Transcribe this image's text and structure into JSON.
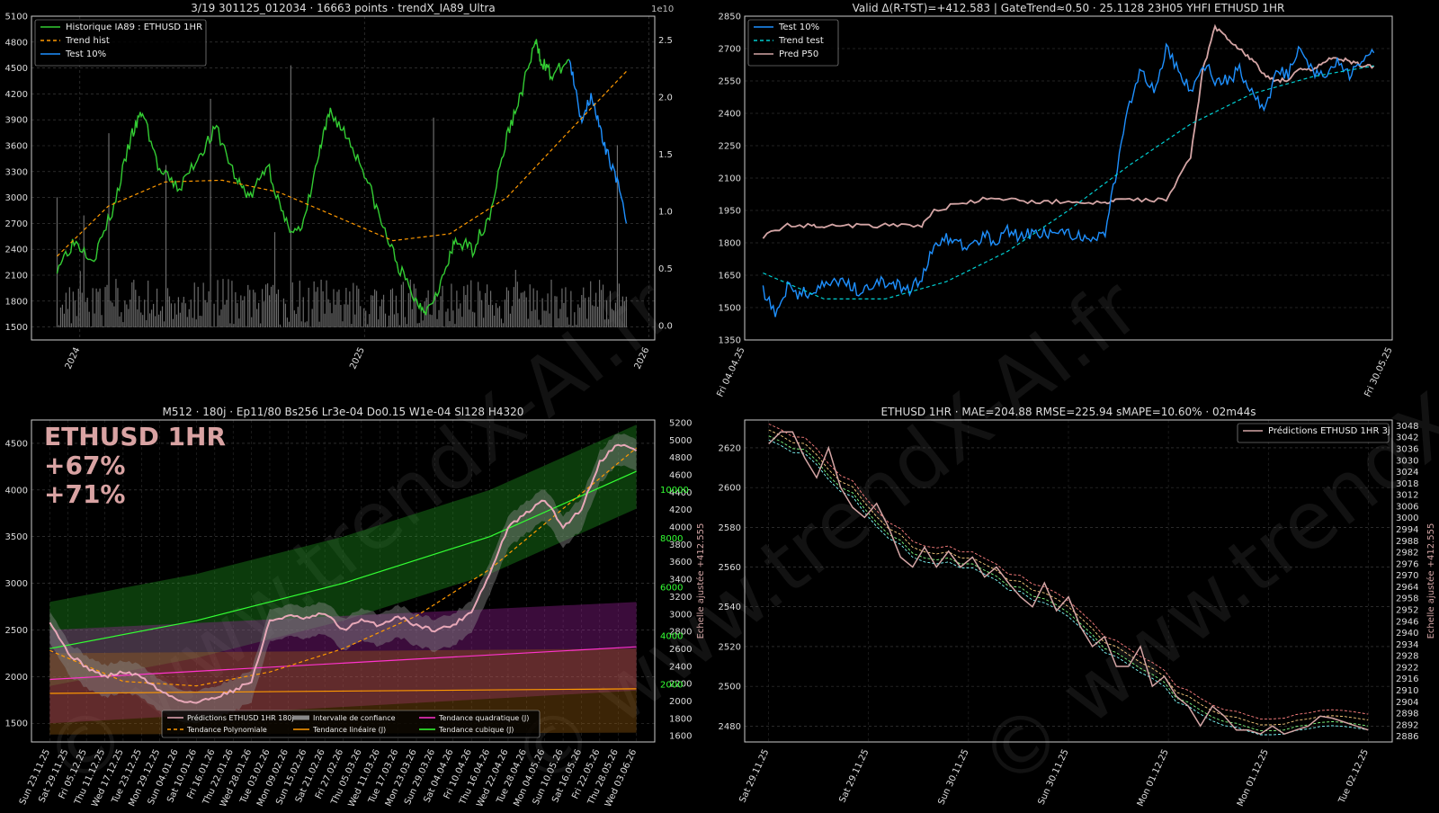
{
  "watermark": "© www.trendX-AI.fr",
  "chart_data": [
    {
      "type": "line",
      "title": "3/19 301125_012034 · 16663 points · trendX_IA89_Ultra",
      "ylim": [
        1350,
        5100
      ],
      "y_ticks": [
        "1500",
        "1800",
        "2100",
        "2400",
        "2700",
        "3000",
        "3300",
        "3600",
        "3900",
        "4200",
        "4500",
        "4800",
        "5100"
      ],
      "y2_ticks": [
        "0.0",
        "0.5",
        "1.0",
        "1.5",
        "2.0",
        "2.5"
      ],
      "y2_exponent": "1e10",
      "x_ticks": [
        "2024",
        "2025",
        "2026"
      ],
      "legend_position": "top-left",
      "legend": [
        "Historique IA89 : ETHUSD 1HR",
        "Trend hist",
        "Test 10%"
      ],
      "colors": {
        "hist": "#33cc33",
        "trend": "#ff9900",
        "test": "#1e90ff",
        "volume": "#777777"
      },
      "series": [
        {
          "name": "Historique IA89 : ETHUSD 1HR",
          "x": [
            2023.92,
            2023.98,
            2024.05,
            2024.12,
            2024.18,
            2024.22,
            2024.28,
            2024.35,
            2024.42,
            2024.48,
            2024.55,
            2024.6,
            2024.66,
            2024.72,
            2024.78,
            2024.84,
            2024.88,
            2024.94,
            2025.0,
            2025.06,
            2025.12,
            2025.18,
            2025.22,
            2025.28,
            2025.32,
            2025.38,
            2025.44,
            2025.5,
            2025.55,
            2025.6,
            2025.62,
            2025.66,
            2025.72
          ],
          "y": [
            2200,
            2500,
            2300,
            2900,
            3700,
            4000,
            3300,
            3100,
            3500,
            3800,
            3200,
            3000,
            3400,
            2700,
            2600,
            3500,
            4000,
            3700,
            3300,
            2700,
            2200,
            1800,
            1700,
            2100,
            2500,
            2400,
            2800,
            3700,
            4200,
            4800,
            4600,
            4400,
            4600
          ]
        },
        {
          "name": "Test 10%",
          "x": [
            2025.72,
            2025.76,
            2025.8,
            2025.84,
            2025.88,
            2025.92
          ],
          "y": [
            4600,
            3900,
            4200,
            3600,
            3300,
            2700
          ]
        },
        {
          "name": "Trend hist",
          "x": [
            2023.92,
            2024.1,
            2024.3,
            2024.5,
            2024.7,
            2024.9,
            2025.1,
            2025.3,
            2025.5,
            2025.7,
            2025.92
          ],
          "y": [
            2320,
            2900,
            3180,
            3200,
            3060,
            2780,
            2500,
            2580,
            3000,
            3700,
            4460
          ]
        }
      ]
    },
    {
      "type": "line",
      "title": "Valid Δ(R-TST)=+412.583 | GateTrend≈0.50 · 25.1128 23H05 YHFI ETHUSD 1HR",
      "ylim": [
        1350,
        2850
      ],
      "y_ticks": [
        "1350",
        "1500",
        "1650",
        "1800",
        "1950",
        "2100",
        "2250",
        "2400",
        "2550",
        "2700",
        "2850"
      ],
      "x_ticks": [
        "Fri 04.04.25",
        "Fri 30.05.25"
      ],
      "legend_position": "top-left",
      "legend": [
        "Test 10%",
        "Trend test",
        "Pred P50"
      ],
      "colors": {
        "test": "#1e90ff",
        "trend": "#00ced1",
        "pred": "#d4a5a5"
      },
      "series": [
        {
          "name": "Test 10%",
          "x": [
            0,
            2,
            4,
            6,
            8,
            10,
            12,
            14,
            16,
            18,
            20,
            22,
            24,
            26,
            28,
            30,
            32,
            34,
            36,
            38,
            40,
            42,
            44,
            46,
            48,
            50,
            52,
            54,
            56,
            58,
            60,
            62,
            64,
            66,
            68,
            70,
            72,
            74,
            76,
            78,
            80,
            82,
            84,
            86,
            88,
            90,
            92,
            94,
            96,
            98,
            100
          ],
          "y": [
            1580,
            1480,
            1600,
            1560,
            1580,
            1600,
            1620,
            1600,
            1580,
            1600,
            1620,
            1600,
            1570,
            1650,
            1780,
            1820,
            1800,
            1780,
            1840,
            1810,
            1860,
            1830,
            1840,
            1850,
            1830,
            1850,
            1820,
            1820,
            1850,
            2150,
            2450,
            2600,
            2500,
            2700,
            2600,
            2500,
            2640,
            2560,
            2550,
            2600,
            2500,
            2400,
            2600,
            2580,
            2700,
            2600,
            2560,
            2650,
            2580,
            2620,
            2680
          ]
        },
        {
          "name": "Pred P50",
          "x": [
            0,
            4,
            8,
            10,
            14,
            18,
            22,
            26,
            28,
            32,
            36,
            40,
            44,
            48,
            52,
            56,
            58,
            62,
            66,
            70,
            72,
            74,
            76,
            78,
            80,
            82,
            84,
            86,
            88,
            90,
            92,
            94,
            96,
            98,
            100
          ],
          "y": [
            1830,
            1880,
            1880,
            1880,
            1880,
            1880,
            1880,
            1880,
            1950,
            1980,
            2000,
            2000,
            1990,
            1990,
            1990,
            1980,
            2000,
            2000,
            2000,
            2200,
            2600,
            2800,
            2750,
            2700,
            2650,
            2580,
            2550,
            2560,
            2600,
            2600,
            2640,
            2660,
            2640,
            2620,
            2620
          ]
        },
        {
          "name": "Trend test",
          "x": [
            0,
            10,
            20,
            30,
            40,
            50,
            60,
            70,
            80,
            90,
            100
          ],
          "y": [
            1660,
            1540,
            1540,
            1620,
            1760,
            1950,
            2160,
            2350,
            2490,
            2570,
            2620
          ]
        }
      ]
    },
    {
      "type": "line",
      "title": "M512 · 180j · Ep11/80 Bs256 Lr3e-04 Do0.15 W1e-04 Sl128 H4320",
      "ylim": [
        1300,
        4750
      ],
      "y_ticks": [
        "1500",
        "2000",
        "2500",
        "3000",
        "3500",
        "4000",
        "4500"
      ],
      "y2_ticks": [
        "1600",
        "1800",
        "2000",
        "2200",
        "2400",
        "2600",
        "2800",
        "3000",
        "3200",
        "3400",
        "3600",
        "3800",
        "4000",
        "4200",
        "4400",
        "4600",
        "4800",
        "5000",
        "5200"
      ],
      "y2_label": "Echelle ajustée +412.555",
      "y3_ticks": [
        "2000",
        "4000",
        "6000",
        "8000",
        "10000"
      ],
      "overlay_texts": [
        "ETHUSD 1HR",
        "+67%",
        "+71%"
      ],
      "x_ticks": [
        "Sun 23.11.25",
        "Sat 29.11.25",
        "Fri 05.12.25",
        "Thu 11.12.25",
        "Wed 17.12.25",
        "Tue 23.12.25",
        "Mon 29.12.25",
        "Sun 04.01.26",
        "Sat 10.01.26",
        "Fri 16.01.26",
        "Thu 22.01.26",
        "Wed 28.01.26",
        "Tue 03.02.26",
        "Mon 09.02.26",
        "Sun 15.02.26",
        "Sat 21.02.26",
        "Fri 27.02.26",
        "Thu 05.03.26",
        "Wed 11.03.26",
        "Tue 17.03.26",
        "Mon 23.03.26",
        "Sun 29.03.26",
        "Sat 04.04.26",
        "Fri 10.04.26",
        "Thu 16.04.26",
        "Wed 22.04.26",
        "Tue 28.04.26",
        "Mon 04.05.26",
        "Sun 10.05.26",
        "Sat 16.05.26",
        "Fri 22.05.26",
        "Thu 28.05.26",
        "Wed 03.06.26"
      ],
      "legend_position": "bottom-center",
      "legend": [
        "Prédictions ETHUSD 1HR 180j",
        "Tendance Polynomiale",
        "Intervalle de confiance",
        "Tendance linéaire (J)",
        "Tendance quadratique (J)",
        "Tendance cubique (J)"
      ],
      "colors": {
        "pred": "#e8a8b8",
        "poly": "#ff9900",
        "band": "#888888",
        "linear": "#ff9900",
        "quad": "#ff33cc",
        "cubic": "#33ff33"
      },
      "series": [
        {
          "name": "Prédictions ETHUSD 1HR 180j",
          "x": [
            0,
            6,
            12,
            18,
            24,
            30,
            36,
            42,
            48,
            54,
            60,
            66,
            72,
            78,
            84,
            90,
            96,
            102,
            108,
            114,
            120,
            126,
            132,
            138,
            144,
            150,
            156,
            162,
            168,
            174,
            180,
            186,
            192
          ],
          "y": [
            2600,
            2250,
            2100,
            2000,
            2050,
            2000,
            1850,
            1750,
            1720,
            1780,
            1850,
            1950,
            2600,
            2650,
            2620,
            2680,
            2500,
            2600,
            2550,
            2650,
            2550,
            2500,
            2550,
            2700,
            3100,
            3600,
            3750,
            3900,
            3600,
            3800,
            4300,
            4500,
            4420
          ]
        },
        {
          "name": "Tendance Polynomiale",
          "x": [
            0,
            24,
            48,
            72,
            96,
            120,
            144,
            168,
            192
          ],
          "y": [
            2280,
            1950,
            1900,
            2050,
            2300,
            2650,
            3150,
            3800,
            4450
          ]
        },
        {
          "name": "Tendance linéaire (J)",
          "x": [
            0,
            192
          ],
          "y": [
            1820,
            1870
          ]
        },
        {
          "name": "Tendance quadratique (J)",
          "x": [
            0,
            192
          ],
          "y": [
            1970,
            2320
          ]
        },
        {
          "name": "Tendance cubique (J)",
          "x": [
            0,
            48,
            96,
            144,
            192
          ],
          "y": [
            2300,
            2600,
            3000,
            3500,
            4200
          ]
        }
      ]
    },
    {
      "type": "line",
      "title": "ETHUSD 1HR · MAE=204.88 RMSE=225.94 sMAPE=10.60% · 02m44s",
      "ylim": [
        2472,
        2634
      ],
      "y_ticks": [
        "2480",
        "2500",
        "2520",
        "2540",
        "2560",
        "2580",
        "2600",
        "2620"
      ],
      "y2_ticks": [
        "2886",
        "2892",
        "2898",
        "2904",
        "2910",
        "2916",
        "2922",
        "2928",
        "2934",
        "2940",
        "2946",
        "2952",
        "2958",
        "2964",
        "2970",
        "2976",
        "2982",
        "2988",
        "2994",
        "3000",
        "3006",
        "3012",
        "3018",
        "3024",
        "3030",
        "3036",
        "3042",
        "3048"
      ],
      "y2_label": "Echelle ajustée +412.555",
      "x_ticks": [
        "Sat 29.11.25",
        "Sat 29.11.25",
        "Sun 30.11.25",
        "Sun 30.11.25",
        "Mon 01.12.25",
        "Mon 01.12.25",
        "Tue 02.12.25"
      ],
      "legend_position": "top-right",
      "legend": [
        "Prédictions ETHUSD 1HR 3j"
      ],
      "colors": {
        "pred": "#d4a5a5",
        "band1": "#ff8080",
        "band2": "#ffd080",
        "band3": "#80ff80",
        "band4": "#80ffff"
      },
      "series": [
        {
          "name": "Prédictions ETHUSD 1HR 3j",
          "x": [
            0,
            2,
            4,
            6,
            8,
            10,
            12,
            14,
            16,
            18,
            20,
            22,
            24,
            26,
            28,
            30,
            32,
            34,
            36,
            38,
            40,
            42,
            44,
            46,
            48,
            50,
            52,
            54,
            56,
            58,
            60,
            62,
            64,
            66,
            68,
            70,
            72,
            74,
            76,
            78,
            80,
            82,
            84,
            86,
            88,
            90,
            92,
            94,
            96,
            98,
            100
          ],
          "y": [
            2622,
            2628,
            2628,
            2615,
            2605,
            2620,
            2600,
            2590,
            2585,
            2592,
            2580,
            2565,
            2560,
            2570,
            2560,
            2568,
            2560,
            2565,
            2555,
            2560,
            2552,
            2545,
            2540,
            2552,
            2538,
            2545,
            2530,
            2520,
            2525,
            2510,
            2510,
            2520,
            2500,
            2505,
            2495,
            2490,
            2480,
            2490,
            2485,
            2478,
            2478,
            2476,
            2480,
            2476,
            2478,
            2480,
            2485,
            2484,
            2482,
            2480,
            2478
          ]
        }
      ]
    }
  ]
}
